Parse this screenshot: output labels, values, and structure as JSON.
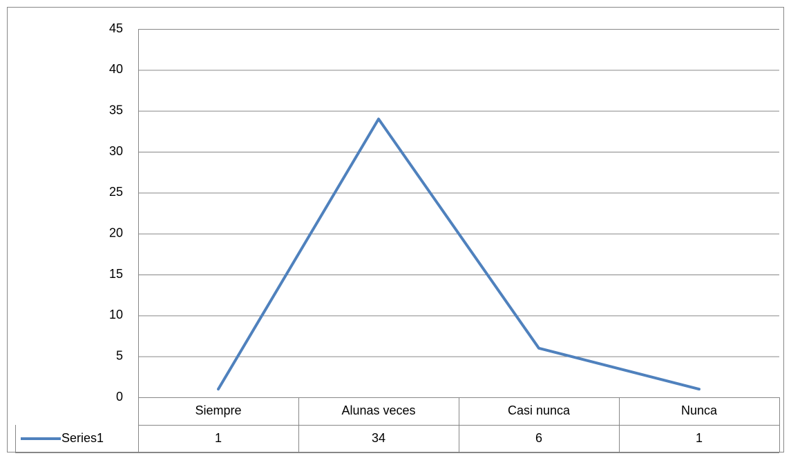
{
  "chart_data": {
    "type": "line",
    "categories": [
      "Siempre",
      "Alunas veces",
      "Casi nunca",
      "Nunca"
    ],
    "series": [
      {
        "name": "Series1",
        "color": "#4f81bd",
        "values": [
          1,
          34,
          6,
          1
        ]
      }
    ],
    "ylim": [
      0,
      45
    ],
    "yticks": [
      0,
      5,
      10,
      15,
      20,
      25,
      30,
      35,
      40,
      45
    ],
    "grid": true,
    "data_table": true
  }
}
